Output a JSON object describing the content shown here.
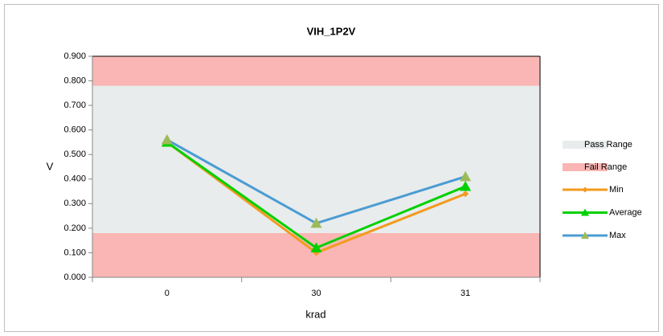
{
  "chart_data": {
    "type": "line",
    "title": "VIH_1P2V",
    "xlabel": "krad",
    "ylabel": "V",
    "categories": [
      "0",
      "30",
      "31"
    ],
    "ranges": [
      {
        "name": "Pass Range",
        "color": "#e8ecec",
        "bands": [
          [
            0.18,
            0.78
          ]
        ]
      },
      {
        "name": "Fail Range",
        "color": "#f9b6b4",
        "bands": [
          [
            0,
            0.18
          ],
          [
            0.78,
            0.9
          ]
        ]
      }
    ],
    "series": [
      {
        "name": "Min",
        "color": "#f39a1e",
        "marker": "diamond",
        "marker_color": "#f39a1e",
        "values": [
          0.55,
          0.1,
          0.34
        ]
      },
      {
        "name": "Average",
        "color": "#00d000",
        "marker": "triangle",
        "marker_color": "#00d000",
        "values": [
          0.55,
          0.12,
          0.37
        ]
      },
      {
        "name": "Max",
        "color": "#4b9cd3",
        "marker": "triangle",
        "marker_color": "#9bbb59",
        "values": [
          0.56,
          0.22,
          0.41
        ]
      }
    ],
    "ylim": [
      0,
      0.9
    ],
    "yticks": [
      {
        "value": 0,
        "label": "0.000"
      },
      {
        "value": 0.1,
        "label": "0.100"
      },
      {
        "value": 0.2,
        "label": "0.200"
      },
      {
        "value": 0.3,
        "label": "0.300"
      },
      {
        "value": 0.4,
        "label": "0.400"
      },
      {
        "value": 0.5,
        "label": "0.500"
      },
      {
        "value": 0.6,
        "label": "0.600"
      },
      {
        "value": 0.7,
        "label": "0.700"
      },
      {
        "value": 0.8,
        "label": "0.800"
      },
      {
        "value": 0.9,
        "label": "0.900"
      }
    ],
    "legend": "right"
  }
}
